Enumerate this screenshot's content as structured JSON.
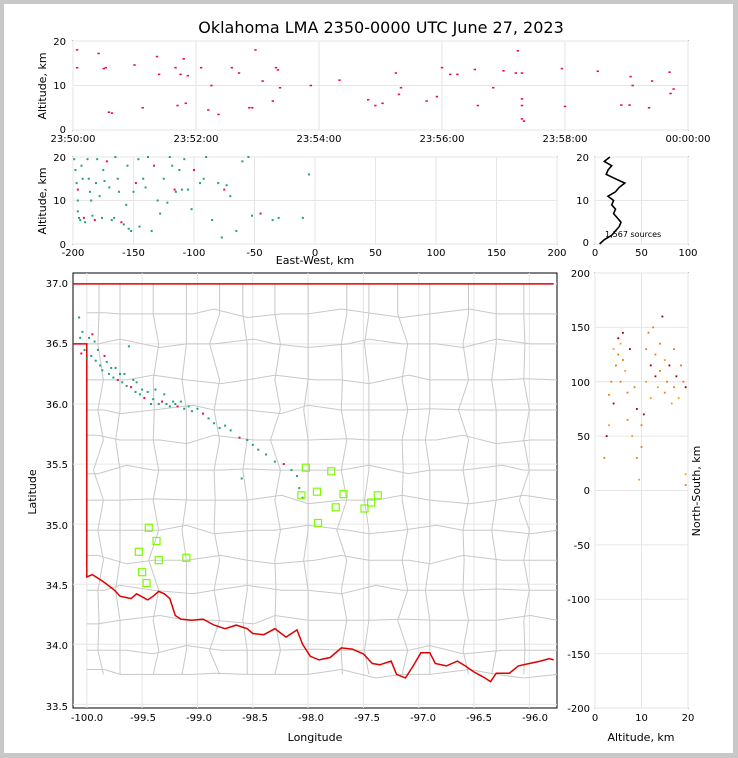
{
  "title": "Oklahoma LMA 2350-0000 UTC June 27, 2023",
  "colors": {
    "state_border": "#e00000",
    "county_lines": "#c8c8c8",
    "station_marker": "#7cfc00",
    "grid": "#e6e6e6",
    "source_early": "#20a080",
    "source_late": "#e8104a"
  },
  "panels": {
    "time_height": {
      "ylabel": "Altitude, km",
      "yticks": [
        "0",
        "10",
        "20"
      ],
      "xticks": [
        "23:50:00",
        "23:52:00",
        "23:54:00",
        "23:56:00",
        "23:58:00",
        "00:00:00"
      ]
    },
    "ew_height": {
      "ylabel": "Altitude, km",
      "xlabel": "East-West, km",
      "yticks": [
        "0",
        "10",
        "20"
      ],
      "xticks": [
        "-200",
        "-150",
        "-100",
        "-50",
        "0",
        "50",
        "100",
        "150",
        "200"
      ]
    },
    "histogram": {
      "yticks": [
        "0",
        "10",
        "20"
      ],
      "xticks": [
        "0",
        "50",
        "100"
      ],
      "sources_label": "1,567 sources"
    },
    "plan": {
      "xlabel": "Longitude",
      "ylabel": "Latitude",
      "xticks": [
        "-100.0",
        "-99.5",
        "-99.0",
        "-98.5",
        "-98.0",
        "-97.5",
        "-97.0",
        "-96.5",
        "-96.0"
      ],
      "yticks": [
        "33.5",
        "34.0",
        "34.5",
        "35.0",
        "35.5",
        "36.0",
        "36.5",
        "37.0"
      ]
    },
    "ns_height": {
      "xlabel": "Altitude, km",
      "ylabel": "North-South, km",
      "xticks": [
        "0",
        "10",
        "20"
      ],
      "yticks": [
        "200",
        "150",
        "100",
        "50",
        "0",
        "-50",
        "-100",
        "-150",
        "-200"
      ]
    }
  },
  "chart_data": [
    {
      "type": "scatter",
      "name": "time-height",
      "xlabel": "",
      "ylabel": "Altitude, km",
      "xlim": [
        "23:50:00",
        "00:00:00"
      ],
      "ylim": [
        0,
        20
      ],
      "points": [
        [
          "23:50:04",
          18.0
        ],
        [
          "23:50:04",
          14.0
        ],
        [
          "23:50:25",
          17.2
        ],
        [
          "23:50:30",
          13.8
        ],
        [
          "23:50:32",
          14.0
        ],
        [
          "23:50:35",
          4.0
        ],
        [
          "23:50:38",
          3.8
        ],
        [
          "23:51:00",
          14.6
        ],
        [
          "23:51:08",
          5.0
        ],
        [
          "23:51:22",
          16.5
        ],
        [
          "23:51:24",
          12.5
        ],
        [
          "23:51:40",
          14.0
        ],
        [
          "23:51:42",
          5.5
        ],
        [
          "23:51:45",
          12.5
        ],
        [
          "23:51:48",
          16.0
        ],
        [
          "23:51:50",
          6.0
        ],
        [
          "23:51:52",
          12.2
        ],
        [
          "23:52:05",
          14.0
        ],
        [
          "23:52:12",
          4.5
        ],
        [
          "23:52:15",
          10.0
        ],
        [
          "23:52:22",
          3.5
        ],
        [
          "23:52:35",
          14.0
        ],
        [
          "23:52:42",
          12.8
        ],
        [
          "23:52:52",
          5.0
        ],
        [
          "23:52:55",
          5.0
        ],
        [
          "23:52:58",
          18.0
        ],
        [
          "23:53:05",
          11.0
        ],
        [
          "23:53:15",
          6.5
        ],
        [
          "23:53:18",
          14.0
        ],
        [
          "23:53:20",
          13.5
        ],
        [
          "23:53:22",
          9.5
        ],
        [
          "23:53:52",
          10.0
        ],
        [
          "23:54:20",
          11.2
        ],
        [
          "23:54:48",
          6.8
        ],
        [
          "23:54:55",
          5.5
        ],
        [
          "23:55:02",
          6.0
        ],
        [
          "23:55:15",
          12.8
        ],
        [
          "23:55:18",
          8.0
        ],
        [
          "23:55:20",
          9.5
        ],
        [
          "23:55:45",
          6.5
        ],
        [
          "23:55:55",
          7.5
        ],
        [
          "23:56:00",
          14.0
        ],
        [
          "23:56:08",
          12.5
        ],
        [
          "23:56:15",
          12.5
        ],
        [
          "23:56:32",
          13.6
        ],
        [
          "23:56:35",
          5.5
        ],
        [
          "23:56:50",
          9.5
        ],
        [
          "23:57:00",
          13.3
        ],
        [
          "23:57:12",
          12.8
        ],
        [
          "23:57:14",
          17.8
        ],
        [
          "23:57:18",
          12.8
        ],
        [
          "23:57:18",
          7.0
        ],
        [
          "23:57:18",
          5.5
        ],
        [
          "23:57:18",
          2.5
        ],
        [
          "23:57:20",
          2.0
        ],
        [
          "23:57:57",
          13.8
        ],
        [
          "23:58:00",
          5.3
        ],
        [
          "23:58:32",
          13.2
        ],
        [
          "23:58:55",
          5.6
        ],
        [
          "23:59:03",
          5.6
        ],
        [
          "23:59:04",
          12.0
        ],
        [
          "23:59:06",
          10.0
        ],
        [
          "23:59:22",
          5.0
        ],
        [
          "23:59:25",
          11.0
        ],
        [
          "23:59:42",
          13.0
        ],
        [
          "23:59:43",
          8.2
        ],
        [
          "23:59:46",
          9.2
        ]
      ]
    },
    {
      "type": "scatter",
      "name": "east-west-height",
      "xlabel": "East-West, km",
      "ylabel": "Altitude, km",
      "xlim": [
        -200,
        200
      ],
      "ylim": [
        0,
        20
      ],
      "points": [
        [
          -199,
          19.5
        ],
        [
          -198,
          17
        ],
        [
          -197,
          14
        ],
        [
          -196,
          12.5
        ],
        [
          -196,
          10
        ],
        [
          -196,
          7.5
        ],
        [
          -195,
          6
        ],
        [
          -194,
          5.5
        ],
        [
          -193,
          18
        ],
        [
          -192,
          15
        ],
        [
          -191,
          6
        ],
        [
          -190,
          5
        ],
        [
          -188,
          19.5
        ],
        [
          -187,
          15
        ],
        [
          -186,
          12
        ],
        [
          -185,
          10
        ],
        [
          -184,
          6.5
        ],
        [
          -182,
          5.5
        ],
        [
          -181,
          14
        ],
        [
          -180,
          19.5
        ],
        [
          -178,
          11
        ],
        [
          -176,
          6
        ],
        [
          -175,
          17
        ],
        [
          -174,
          14.5
        ],
        [
          -172,
          19
        ],
        [
          -170,
          13
        ],
        [
          -168,
          5.5
        ],
        [
          -166,
          6
        ],
        [
          -165,
          20
        ],
        [
          -163,
          15
        ],
        [
          -162,
          12
        ],
        [
          -160,
          5
        ],
        [
          -158,
          4.5
        ],
        [
          -156,
          9
        ],
        [
          -155,
          18
        ],
        [
          -154,
          3.5
        ],
        [
          -152,
          3
        ],
        [
          -150,
          12
        ],
        [
          -148,
          14
        ],
        [
          -146,
          19.5
        ],
        [
          -145,
          4
        ],
        [
          -142,
          15
        ],
        [
          -140,
          13
        ],
        [
          -138,
          20
        ],
        [
          -135,
          3
        ],
        [
          -133,
          18
        ],
        [
          -130,
          10
        ],
        [
          -128,
          7
        ],
        [
          -125,
          15
        ],
        [
          -122,
          9.5
        ],
        [
          -120,
          20
        ],
        [
          -118,
          18
        ],
        [
          -116,
          12.5
        ],
        [
          -115,
          12
        ],
        [
          -112,
          17
        ],
        [
          -110,
          12.5
        ],
        [
          -108,
          19.5
        ],
        [
          -105,
          12.5
        ],
        [
          -102,
          8
        ],
        [
          -100,
          17
        ],
        [
          -95,
          14
        ],
        [
          -92,
          15
        ],
        [
          -90,
          20
        ],
        [
          -85,
          5.5
        ],
        [
          -80,
          14
        ],
        [
          -77,
          1.5
        ],
        [
          -75,
          12.5
        ],
        [
          -73,
          13.5
        ],
        [
          -70,
          11
        ],
        [
          -65,
          3
        ],
        [
          -60,
          19
        ],
        [
          -55,
          20
        ],
        [
          -52,
          6.5
        ],
        [
          -45,
          7
        ],
        [
          -35,
          5.5
        ],
        [
          -30,
          6
        ],
        [
          -10,
          6
        ],
        [
          -5,
          16
        ]
      ]
    },
    {
      "type": "line",
      "name": "altitude-histogram",
      "xlabel": "",
      "ylabel": "",
      "xlim": [
        0,
        100
      ],
      "ylim": [
        0,
        20
      ],
      "y": [
        0,
        1,
        2,
        3,
        4,
        5,
        6,
        7,
        8,
        9,
        10,
        11,
        12,
        13,
        14,
        15,
        16,
        17,
        18,
        19,
        20
      ],
      "x": [
        5,
        10,
        18,
        22,
        26,
        28,
        24,
        20,
        22,
        18,
        20,
        14,
        22,
        26,
        32,
        22,
        12,
        14,
        18,
        10,
        16
      ]
    },
    {
      "type": "scatter",
      "name": "plan-view",
      "xlabel": "Longitude",
      "ylabel": "Latitude",
      "xlim": [
        -100.1,
        -95.75
      ],
      "ylim": [
        33.5,
        37.08
      ],
      "points": [
        [
          -100.07,
          36.72
        ],
        [
          -100.06,
          36.55
        ],
        [
          -100.05,
          36.42
        ],
        [
          -100.04,
          36.6
        ],
        [
          -100.02,
          36.45
        ],
        [
          -100.0,
          36.38
        ],
        [
          -99.98,
          36.55
        ],
        [
          -99.96,
          36.4
        ],
        [
          -99.95,
          36.58
        ],
        [
          -99.93,
          36.52
        ],
        [
          -99.92,
          36.36
        ],
        [
          -99.9,
          36.45
        ],
        [
          -99.88,
          36.32
        ],
        [
          -99.86,
          36.28
        ],
        [
          -99.84,
          36.4
        ],
        [
          -99.82,
          36.35
        ],
        [
          -99.8,
          36.25
        ],
        [
          -99.78,
          36.3
        ],
        [
          -99.76,
          36.22
        ],
        [
          -99.74,
          36.3
        ],
        [
          -99.72,
          36.2
        ],
        [
          -99.7,
          36.25
        ],
        [
          -99.68,
          36.18
        ],
        [
          -99.66,
          36.25
        ],
        [
          -99.64,
          36.15
        ],
        [
          -99.62,
          36.48
        ],
        [
          -99.6,
          36.14
        ],
        [
          -99.58,
          36.2
        ],
        [
          -99.56,
          36.1
        ],
        [
          -99.55,
          36.18
        ],
        [
          -99.52,
          36.08
        ],
        [
          -99.5,
          36.12
        ],
        [
          -99.48,
          36.05
        ],
        [
          -99.45,
          36.1
        ],
        [
          -99.42,
          36.0
        ],
        [
          -99.4,
          36.04
        ],
        [
          -99.38,
          36.12
        ],
        [
          -99.35,
          36.0
        ],
        [
          -99.32,
          36.02
        ],
        [
          -99.3,
          36.08
        ],
        [
          -99.28,
          36.0
        ],
        [
          -99.25,
          35.98
        ],
        [
          -99.22,
          36.02
        ],
        [
          -99.2,
          36.0
        ],
        [
          -99.18,
          35.98
        ],
        [
          -99.15,
          36.02
        ],
        [
          -99.12,
          35.96
        ],
        [
          -99.08,
          35.98
        ],
        [
          -99.05,
          35.94
        ],
        [
          -99.0,
          35.96
        ],
        [
          -98.95,
          35.92
        ],
        [
          -98.9,
          35.88
        ],
        [
          -98.85,
          35.84
        ],
        [
          -98.8,
          35.8
        ],
        [
          -98.75,
          35.82
        ],
        [
          -98.7,
          35.78
        ],
        [
          -98.62,
          35.72
        ],
        [
          -98.55,
          35.7
        ],
        [
          -98.5,
          35.66
        ],
        [
          -98.45,
          35.62
        ],
        [
          -98.38,
          35.58
        ],
        [
          -98.3,
          35.52
        ],
        [
          -98.22,
          35.5
        ],
        [
          -98.15,
          35.45
        ],
        [
          -98.1,
          35.4
        ],
        [
          -98.08,
          35.3
        ],
        [
          -98.05,
          35.22
        ],
        [
          -98.6,
          35.38
        ]
      ]
    },
    {
      "type": "scatter",
      "name": "north-south-height",
      "xlabel": "Altitude, km",
      "ylabel": "North-South, km",
      "xlim": [
        0,
        20
      ],
      "ylim": [
        -200,
        200
      ],
      "points": [
        [
          2,
          30
        ],
        [
          2.5,
          50
        ],
        [
          3,
          60
        ],
        [
          3,
          88
        ],
        [
          3.5,
          100
        ],
        [
          4,
          80
        ],
        [
          4,
          130
        ],
        [
          4.5,
          115
        ],
        [
          5,
          125
        ],
        [
          5,
          140
        ],
        [
          5.5,
          135
        ],
        [
          5.5,
          100
        ],
        [
          6,
          120
        ],
        [
          6,
          145
        ],
        [
          6.5,
          110
        ],
        [
          7,
          90
        ],
        [
          7,
          65
        ],
        [
          7.5,
          130
        ],
        [
          8,
          50
        ],
        [
          8.5,
          95
        ],
        [
          9,
          30
        ],
        [
          9,
          75
        ],
        [
          9.5,
          10
        ],
        [
          10,
          60
        ],
        [
          10,
          40
        ],
        [
          10.5,
          70
        ],
        [
          11,
          100
        ],
        [
          11,
          130
        ],
        [
          11.5,
          145
        ],
        [
          12,
          115
        ],
        [
          12,
          85
        ],
        [
          12.5,
          150
        ],
        [
          13,
          125
        ],
        [
          13,
          105
        ],
        [
          13.5,
          95
        ],
        [
          14,
          135
        ],
        [
          14,
          110
        ],
        [
          14.5,
          160
        ],
        [
          15,
          120
        ],
        [
          15,
          90
        ],
        [
          15.5,
          100
        ],
        [
          16,
          115
        ],
        [
          16.5,
          80
        ],
        [
          17,
          130
        ],
        [
          17,
          95
        ],
        [
          17.5,
          105
        ],
        [
          18,
          85
        ],
        [
          18.5,
          115
        ],
        [
          19,
          100
        ],
        [
          19.5,
          95
        ],
        [
          19.5,
          15
        ],
        [
          19.5,
          5
        ]
      ]
    }
  ],
  "stations": [
    [
      -99.53,
      34.77
    ],
    [
      -99.5,
      34.6
    ],
    [
      -99.46,
      34.51
    ],
    [
      -99.44,
      34.97
    ],
    [
      -99.37,
      34.86
    ],
    [
      -99.35,
      34.7
    ],
    [
      -99.1,
      34.72
    ],
    [
      -98.06,
      35.24
    ],
    [
      -98.02,
      35.47
    ],
    [
      -97.92,
      35.27
    ],
    [
      -97.91,
      35.01
    ],
    [
      -97.79,
      35.44
    ],
    [
      -97.75,
      35.14
    ],
    [
      -97.68,
      35.25
    ],
    [
      -97.49,
      35.13
    ],
    [
      -97.43,
      35.18
    ],
    [
      -97.37,
      35.24
    ]
  ]
}
